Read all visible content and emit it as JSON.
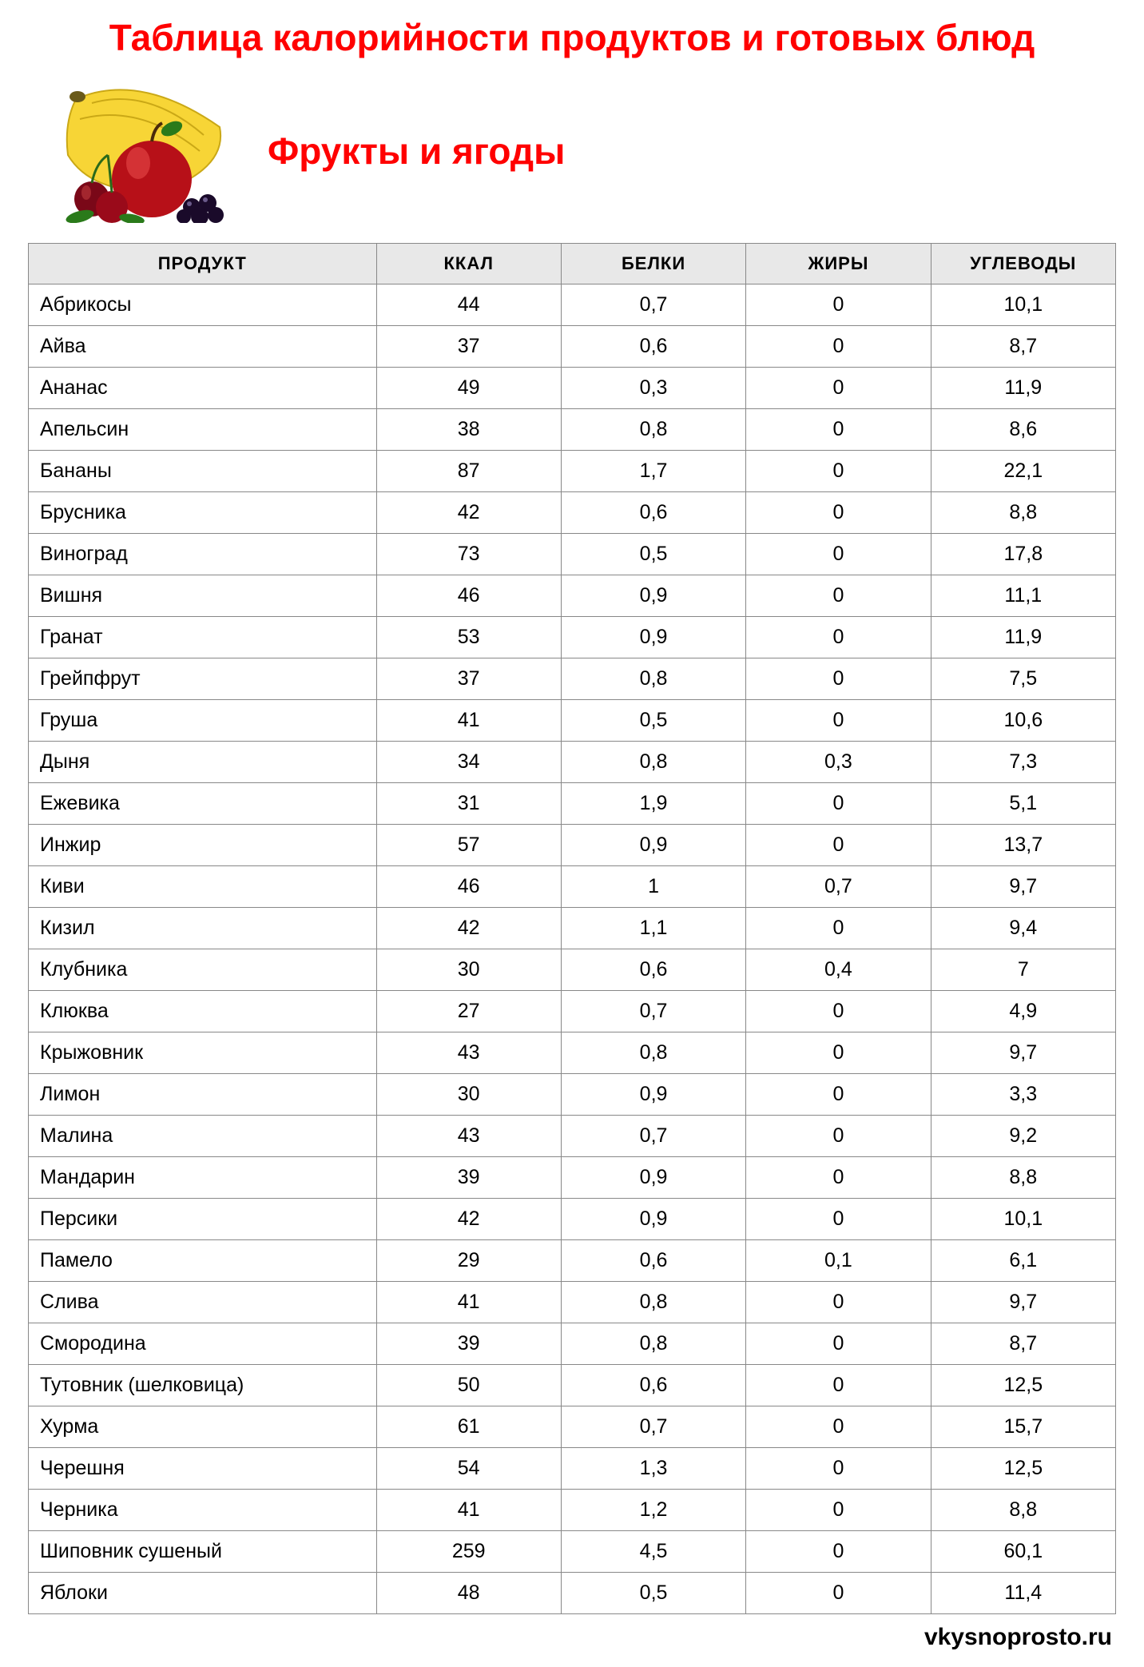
{
  "title": "Таблица калорийности продуктов и готовых блюд",
  "subtitle": "Фрукты и ягоды",
  "footer": "vkysnoprosto.ru",
  "columns": [
    "ПРОДУКТ",
    "ККАЛ",
    "БЕЛКИ",
    "ЖИРЫ",
    "УГЛЕВОДЫ"
  ],
  "style": {
    "title_color": "#ff0000",
    "title_fontsize": 46,
    "header_bg": "#e8e8e8",
    "border_color": "#888888",
    "cell_fontsize": 25,
    "header_fontsize": 22,
    "background": "#ffffff",
    "col_widths_pct": [
      32,
      17,
      17,
      17,
      17
    ],
    "product_align": "left",
    "number_align": "center"
  },
  "rows": [
    [
      "Абрикосы",
      "44",
      "0,7",
      "0",
      "10,1"
    ],
    [
      "Айва",
      "37",
      "0,6",
      "0",
      "8,7"
    ],
    [
      "Ананас",
      "49",
      "0,3",
      "0",
      "11,9"
    ],
    [
      "Апельсин",
      "38",
      "0,8",
      "0",
      "8,6"
    ],
    [
      "Бананы",
      "87",
      "1,7",
      "0",
      "22,1"
    ],
    [
      "Брусника",
      "42",
      "0,6",
      "0",
      "8,8"
    ],
    [
      "Виноград",
      "73",
      "0,5",
      "0",
      "17,8"
    ],
    [
      "Вишня",
      "46",
      "0,9",
      "0",
      "11,1"
    ],
    [
      "Гранат",
      "53",
      "0,9",
      "0",
      "11,9"
    ],
    [
      "Грейпфрут",
      "37",
      "0,8",
      "0",
      "7,5"
    ],
    [
      "Груша",
      "41",
      "0,5",
      "0",
      "10,6"
    ],
    [
      "Дыня",
      "34",
      "0,8",
      "0,3",
      "7,3"
    ],
    [
      "Ежевика",
      "31",
      "1,9",
      "0",
      "5,1"
    ],
    [
      "Инжир",
      "57",
      "0,9",
      "0",
      "13,7"
    ],
    [
      "Киви",
      "46",
      "1",
      "0,7",
      "9,7"
    ],
    [
      "Кизил",
      "42",
      "1,1",
      "0",
      "9,4"
    ],
    [
      "Клубника",
      "30",
      "0,6",
      "0,4",
      "7"
    ],
    [
      "Клюква",
      "27",
      "0,7",
      "0",
      "4,9"
    ],
    [
      "Крыжовник",
      "43",
      "0,8",
      "0",
      "9,7"
    ],
    [
      "Лимон",
      "30",
      "0,9",
      "0",
      "3,3"
    ],
    [
      "Малина",
      "43",
      "0,7",
      "0",
      "9,2"
    ],
    [
      "Мандарин",
      "39",
      "0,9",
      "0",
      "8,8"
    ],
    [
      "Персики",
      "42",
      "0,9",
      "0",
      "10,1"
    ],
    [
      "Памело",
      "29",
      "0,6",
      "0,1",
      "6,1"
    ],
    [
      "Слива",
      "41",
      "0,8",
      "0",
      "9,7"
    ],
    [
      "Смородина",
      "39",
      "0,8",
      "0",
      "8,7"
    ],
    [
      "Тутовник (шелковица)",
      "50",
      "0,6",
      "0",
      "12,5"
    ],
    [
      "Хурма",
      "61",
      "0,7",
      "0",
      "15,7"
    ],
    [
      "Черешня",
      "54",
      "1,3",
      "0",
      "12,5"
    ],
    [
      "Черника",
      "41",
      "1,2",
      "0",
      "8,8"
    ],
    [
      "Шиповник сушеный",
      "259",
      "4,5",
      "0",
      "60,1"
    ],
    [
      "Яблоки",
      "48",
      "0,5",
      "0",
      "11,4"
    ]
  ]
}
